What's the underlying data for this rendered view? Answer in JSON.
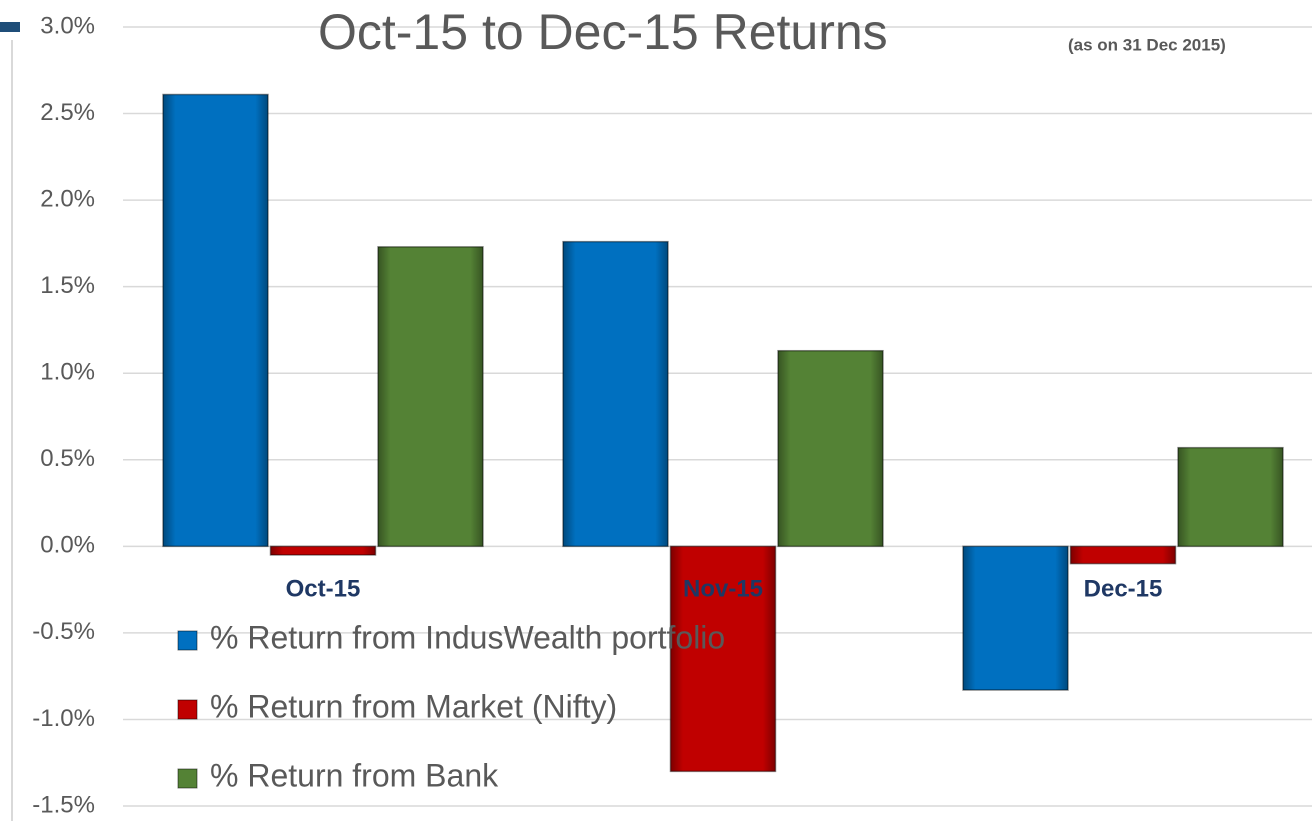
{
  "chart_data": {
    "type": "bar",
    "title": "Oct-15 to Dec-15 Returns",
    "subtitle": "(as on 31 Dec 2015)",
    "categories": [
      "Oct-15",
      "Nov-15",
      "Dec-15"
    ],
    "series": [
      {
        "name": "% Return from IndusWealth portfolio",
        "color": "#0070c0",
        "values": [
          2.61,
          1.76,
          -0.83
        ]
      },
      {
        "name": "% Return from Market (Nifty)",
        "color": "#c00000",
        "values": [
          -0.05,
          -1.3,
          -0.1
        ]
      },
      {
        "name": "% Return from Bank",
        "color": "#548235",
        "values": [
          1.73,
          1.13,
          0.57
        ]
      }
    ],
    "ylim": [
      -1.5,
      3.0
    ],
    "yticks": [
      {
        "value": -1.5,
        "label": "-1.5%"
      },
      {
        "value": -1.0,
        "label": "-1.0%"
      },
      {
        "value": -0.5,
        "label": "-0.5%"
      },
      {
        "value": 0.0,
        "label": "0.0%"
      },
      {
        "value": 0.5,
        "label": "0.5%"
      },
      {
        "value": 1.0,
        "label": "1.0%"
      },
      {
        "value": 1.5,
        "label": "1.5%"
      },
      {
        "value": 2.0,
        "label": "2.0%"
      },
      {
        "value": 2.5,
        "label": "2.5%"
      },
      {
        "value": 3.0,
        "label": "3.0%"
      }
    ],
    "grid": true,
    "legend": "bottom-left"
  }
}
